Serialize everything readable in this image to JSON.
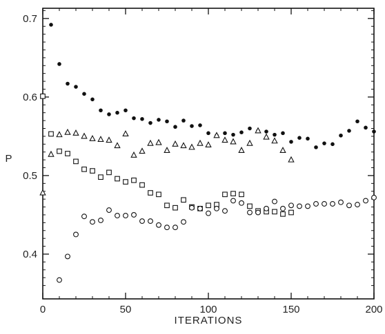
{
  "chart_data": {
    "type": "scatter",
    "title": "",
    "xlabel": "ITERATIONS",
    "ylabel": "P",
    "xlim": [
      0,
      200
    ],
    "ylim": [
      0.343,
      0.713
    ],
    "xticks": [
      0,
      50,
      100,
      150,
      200
    ],
    "xtick_labels": [
      "0",
      "50",
      "100",
      "150",
      "200"
    ],
    "yticks": [
      0.4,
      0.5,
      0.6,
      0.7
    ],
    "ytick_labels": [
      "0.4",
      "0.5",
      "0.6",
      "0.7"
    ],
    "grid": false,
    "legend": "none",
    "series": [
      {
        "marker": "filled-circle",
        "color": "#111111",
        "points": [
          [
            5,
            0.692
          ],
          [
            10,
            0.642
          ],
          [
            15,
            0.617
          ],
          [
            20,
            0.613
          ],
          [
            25,
            0.604
          ],
          [
            30,
            0.597
          ],
          [
            35,
            0.583
          ],
          [
            40,
            0.578
          ],
          [
            45,
            0.58
          ],
          [
            50,
            0.583
          ],
          [
            55,
            0.573
          ],
          [
            60,
            0.572
          ],
          [
            65,
            0.567
          ],
          [
            70,
            0.571
          ],
          [
            75,
            0.569
          ],
          [
            80,
            0.562
          ],
          [
            85,
            0.57
          ],
          [
            90,
            0.563
          ],
          [
            95,
            0.564
          ],
          [
            100,
            0.554
          ],
          [
            105,
            0.551
          ],
          [
            110,
            0.554
          ],
          [
            115,
            0.552
          ],
          [
            120,
            0.555
          ],
          [
            125,
            0.56
          ],
          [
            130,
            0.557
          ],
          [
            135,
            0.556
          ],
          [
            140,
            0.552
          ],
          [
            145,
            0.554
          ],
          [
            150,
            0.543
          ],
          [
            155,
            0.548
          ],
          [
            160,
            0.547
          ],
          [
            165,
            0.536
          ],
          [
            170,
            0.541
          ],
          [
            175,
            0.54
          ],
          [
            180,
            0.551
          ],
          [
            185,
            0.557
          ],
          [
            190,
            0.569
          ],
          [
            195,
            0.561
          ],
          [
            200,
            0.556
          ]
        ]
      },
      {
        "marker": "open-triangle",
        "color": "#111111",
        "points": [
          [
            0,
            0.478
          ],
          [
            5,
            0.527
          ],
          [
            10,
            0.552
          ],
          [
            15,
            0.555
          ],
          [
            20,
            0.554
          ],
          [
            25,
            0.55
          ],
          [
            30,
            0.547
          ],
          [
            35,
            0.546
          ],
          [
            40,
            0.545
          ],
          [
            45,
            0.538
          ],
          [
            50,
            0.553
          ],
          [
            55,
            0.526
          ],
          [
            60,
            0.531
          ],
          [
            65,
            0.541
          ],
          [
            70,
            0.542
          ],
          [
            75,
            0.532
          ],
          [
            80,
            0.54
          ],
          [
            85,
            0.538
          ],
          [
            90,
            0.536
          ],
          [
            95,
            0.541
          ],
          [
            100,
            0.539
          ],
          [
            105,
            0.551
          ],
          [
            110,
            0.545
          ],
          [
            115,
            0.543
          ],
          [
            120,
            0.532
          ],
          [
            125,
            0.541
          ],
          [
            130,
            0.557
          ],
          [
            135,
            0.549
          ],
          [
            140,
            0.544
          ],
          [
            145,
            0.532
          ],
          [
            150,
            0.52
          ]
        ]
      },
      {
        "marker": "open-square",
        "color": "#111111",
        "points": [
          [
            0,
            0.601
          ],
          [
            5,
            0.553
          ],
          [
            10,
            0.531
          ],
          [
            15,
            0.528
          ],
          [
            20,
            0.518
          ],
          [
            25,
            0.508
          ],
          [
            30,
            0.506
          ],
          [
            35,
            0.498
          ],
          [
            40,
            0.504
          ],
          [
            45,
            0.496
          ],
          [
            50,
            0.492
          ],
          [
            55,
            0.494
          ],
          [
            60,
            0.488
          ],
          [
            65,
            0.478
          ],
          [
            70,
            0.476
          ],
          [
            75,
            0.462
          ],
          [
            80,
            0.459
          ],
          [
            85,
            0.469
          ],
          [
            90,
            0.46
          ],
          [
            95,
            0.458
          ],
          [
            100,
            0.462
          ],
          [
            105,
            0.463
          ],
          [
            110,
            0.476
          ],
          [
            115,
            0.477
          ],
          [
            120,
            0.476
          ],
          [
            125,
            0.461
          ],
          [
            130,
            0.455
          ],
          [
            135,
            0.454
          ],
          [
            140,
            0.454
          ],
          [
            145,
            0.451
          ],
          [
            150,
            0.453
          ]
        ]
      },
      {
        "marker": "open-circle",
        "color": "#111111",
        "points": [
          [
            10,
            0.367
          ],
          [
            15,
            0.397
          ],
          [
            20,
            0.425
          ],
          [
            25,
            0.448
          ],
          [
            30,
            0.441
          ],
          [
            35,
            0.443
          ],
          [
            40,
            0.456
          ],
          [
            45,
            0.449
          ],
          [
            50,
            0.449
          ],
          [
            55,
            0.45
          ],
          [
            60,
            0.442
          ],
          [
            65,
            0.442
          ],
          [
            70,
            0.437
          ],
          [
            75,
            0.434
          ],
          [
            80,
            0.434
          ],
          [
            85,
            0.441
          ],
          [
            90,
            0.459
          ],
          [
            95,
            0.458
          ],
          [
            100,
            0.452
          ],
          [
            105,
            0.458
          ],
          [
            110,
            0.455
          ],
          [
            115,
            0.468
          ],
          [
            120,
            0.465
          ],
          [
            125,
            0.453
          ],
          [
            130,
            0.453
          ],
          [
            135,
            0.458
          ],
          [
            140,
            0.467
          ],
          [
            145,
            0.458
          ],
          [
            150,
            0.462
          ],
          [
            155,
            0.461
          ],
          [
            160,
            0.461
          ],
          [
            165,
            0.464
          ],
          [
            170,
            0.464
          ],
          [
            175,
            0.464
          ],
          [
            180,
            0.466
          ],
          [
            185,
            0.462
          ],
          [
            190,
            0.463
          ],
          [
            195,
            0.468
          ],
          [
            200,
            0.472
          ]
        ]
      }
    ]
  }
}
